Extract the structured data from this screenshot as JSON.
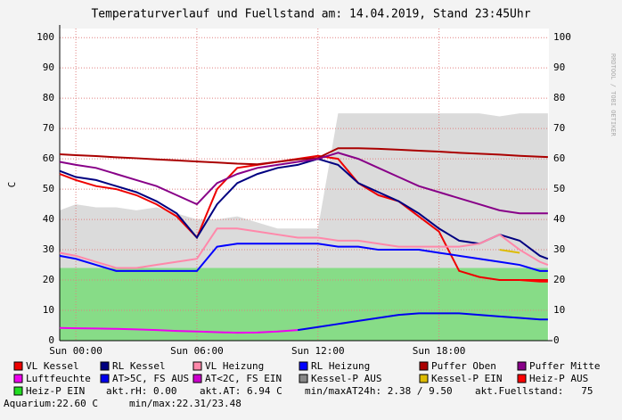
{
  "chart_data": {
    "type": "line",
    "title": "Temperaturverlauf und Fuellstand am: 14.04.2019, Stand 23:45Uhr",
    "y_label": "C",
    "watermark": "RRDTOOL / TOBI OETIKER",
    "xlim": [
      -0.8,
      23.45
    ],
    "ylim": [
      0,
      103
    ],
    "yticks": [
      0,
      10,
      20,
      30,
      40,
      50,
      60,
      70,
      80,
      90,
      100
    ],
    "xticks": [
      {
        "value": 0,
        "label": "Sun 00:00"
      },
      {
        "value": 6,
        "label": "Sun 06:00"
      },
      {
        "value": 12,
        "label": "Sun 12:00"
      },
      {
        "value": 18,
        "label": "Sun 18:00"
      }
    ],
    "grid": true,
    "x": [
      -0.8,
      0,
      1,
      2,
      3,
      4,
      5,
      6,
      7,
      8,
      9,
      10,
      11,
      12,
      13,
      14,
      15,
      16,
      17,
      18,
      19,
      20,
      21,
      22,
      23,
      23.4
    ],
    "series": [
      {
        "name": "VL Kessel",
        "color": "#ee0000",
        "values": [
          55,
          53,
          51,
          50,
          48,
          45,
          41,
          34,
          50,
          57,
          58,
          59,
          60,
          61,
          60,
          52,
          48,
          46,
          41,
          36,
          23,
          21,
          20,
          20,
          20,
          20
        ]
      },
      {
        "name": "RL Kessel",
        "color": "#000080",
        "values": [
          56,
          54,
          53,
          51,
          49,
          46,
          42,
          34,
          45,
          52,
          55,
          57,
          58,
          60,
          58,
          52,
          49,
          46,
          42,
          37,
          33,
          32,
          35,
          33,
          28,
          27
        ]
      },
      {
        "name": "VL Heizung",
        "color": "#ff88aa",
        "values": [
          29,
          28,
          26,
          24,
          24,
          25,
          26,
          27,
          37,
          37,
          36,
          35,
          34,
          34,
          33,
          33,
          32,
          31,
          31,
          31,
          31,
          32,
          35,
          30,
          26,
          25
        ]
      },
      {
        "name": "RL Heizung",
        "color": "#0000ff",
        "values": [
          28,
          27,
          25,
          23,
          23,
          23,
          23,
          23,
          31,
          32,
          32,
          32,
          32,
          32,
          31,
          31,
          30,
          30,
          30,
          29,
          28,
          27,
          26,
          25,
          23,
          23
        ]
      },
      {
        "name": "Puffer Oben",
        "color": "#aa0000",
        "values": [
          61.5,
          61.2,
          60.9,
          60.5,
          60.2,
          59.8,
          59.5,
          59.1,
          58.8,
          58.4,
          58.2,
          59,
          59.8,
          60.3,
          63.5,
          63.5,
          63.3,
          63,
          62.7,
          62.4,
          62,
          61.7,
          61.4,
          61,
          60.7,
          60.6
        ]
      },
      {
        "name": "Puffer Mitte",
        "color": "#880088",
        "values": [
          59,
          58,
          57,
          55,
          53,
          51,
          48,
          45,
          52,
          55,
          57,
          58,
          59,
          60,
          62,
          60,
          57,
          54,
          51,
          49,
          47,
          45,
          43,
          42,
          42,
          42
        ]
      },
      {
        "name": "Luftfeuchte",
        "color": "#ee00ee",
        "values": [
          4.2,
          4.1,
          4,
          3.9,
          3.7,
          3.5,
          3.2,
          3,
          2.8,
          2.6,
          2.7,
          3,
          3.5,
          null,
          null,
          null,
          null,
          null,
          null,
          null,
          null,
          null,
          null,
          null,
          null,
          null
        ]
      },
      {
        "name": "AT>5C, FS AUS",
        "color": "#0000ee",
        "values": [
          null,
          null,
          null,
          null,
          null,
          null,
          null,
          null,
          null,
          null,
          null,
          null,
          3.5,
          4.5,
          5.5,
          6.5,
          7.5,
          8.5,
          9,
          9,
          9,
          8.5,
          8,
          7.5,
          7,
          7
        ]
      },
      {
        "name": "AT<2C, FS EIN",
        "color": "#cc00cc",
        "values": [
          null,
          null,
          null,
          null,
          null,
          null,
          null,
          null,
          null,
          null,
          null,
          null,
          null,
          null,
          null,
          null,
          null,
          null,
          null,
          null,
          null,
          null,
          null,
          null,
          null,
          null
        ]
      },
      {
        "name": "Kessel-P AUS",
        "color": "#888888",
        "area": true,
        "values": [
          43,
          45,
          44,
          44,
          43,
          44,
          42,
          40,
          40,
          41,
          39,
          37,
          37,
          37,
          75,
          75,
          75,
          75,
          75,
          75,
          75,
          75,
          74,
          75,
          75,
          75
        ]
      },
      {
        "name": "Kessel-P EIN",
        "color": "#ddbb00",
        "values": [
          null,
          null,
          null,
          null,
          null,
          null,
          null,
          null,
          null,
          null,
          null,
          null,
          null,
          null,
          null,
          null,
          null,
          null,
          null,
          null,
          null,
          null,
          30,
          29,
          null,
          null
        ]
      },
      {
        "name": "Heiz-P AUS",
        "color": "#ff0000",
        "values": [
          null,
          null,
          null,
          null,
          null,
          null,
          null,
          null,
          null,
          null,
          null,
          null,
          null,
          null,
          null,
          null,
          null,
          null,
          null,
          null,
          null,
          null,
          null,
          20,
          19.5,
          19.5
        ]
      },
      {
        "name": "Heiz-P EIN",
        "color": "#22dd22",
        "area": true,
        "values": [
          24,
          24,
          24,
          24,
          24,
          24,
          24,
          24,
          24,
          24,
          24,
          24,
          24,
          24,
          24,
          24,
          24,
          24,
          24,
          24,
          24,
          24,
          24,
          24,
          24,
          24
        ]
      }
    ],
    "info": [
      "akt.rH: 0.00",
      "akt.AT: 6.94 C",
      "min/maxAT24h: 2.38 / 9.50",
      "akt.Fuellstand:   75"
    ],
    "info2": [
      "Aquarium:22.60 C",
      "min/max:22.31/23.48"
    ]
  }
}
